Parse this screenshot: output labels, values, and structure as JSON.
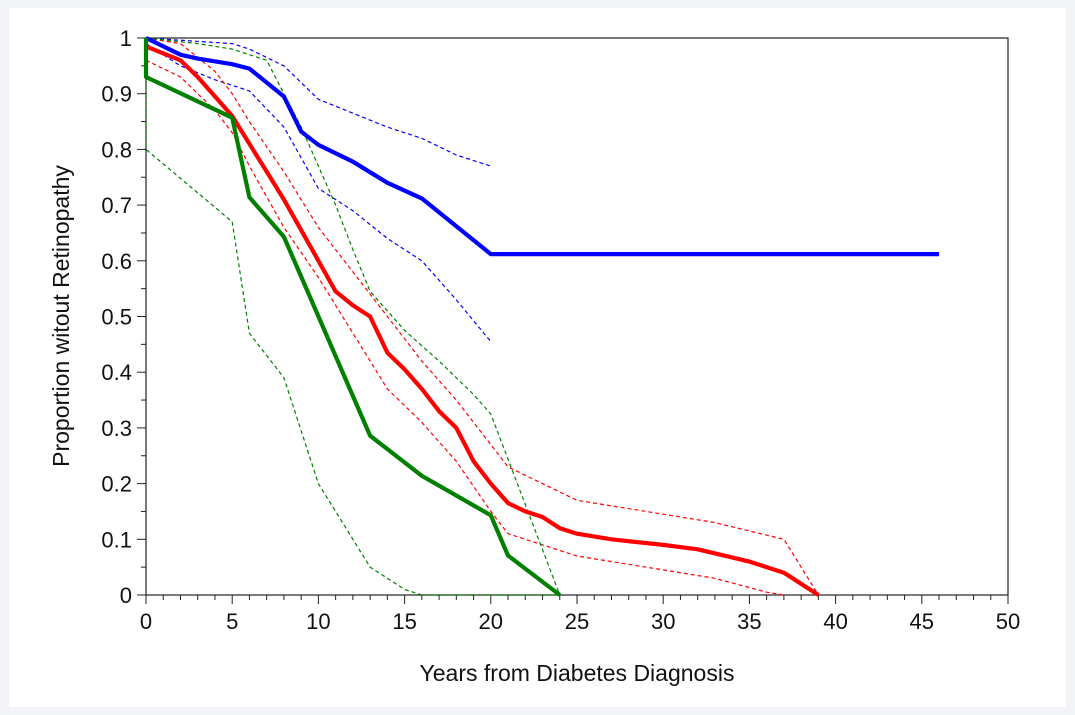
{
  "chart_data": {
    "type": "line",
    "title": "",
    "xlabel": "Years from Diabetes Diagnosis",
    "ylabel": "Proportion witout Retinopathy",
    "xlim": [
      0,
      50
    ],
    "ylim": [
      0,
      1
    ],
    "x_ticks": [
      "0",
      "5",
      "10",
      "15",
      "20",
      "25",
      "30",
      "35",
      "40",
      "45",
      "50"
    ],
    "y_ticks": [
      "0",
      "0.1",
      "0.2",
      "0.3",
      "0.4",
      "0.5",
      "0.6",
      "0.7",
      "0.8",
      "0.9",
      "1"
    ],
    "grid": false,
    "legend": "none",
    "series": [
      {
        "color": "#0000ff",
        "style": "solid",
        "x": [
          0,
          2,
          3,
          5,
          6,
          8,
          9,
          10,
          12,
          14,
          16,
          18,
          20,
          46
        ],
        "y": [
          1.0,
          0.97,
          0.963,
          0.953,
          0.945,
          0.895,
          0.832,
          0.808,
          0.778,
          0.74,
          0.712,
          0.662,
          0.612,
          0.612
        ]
      },
      {
        "color": "#0000ff",
        "style": "dashed",
        "x": [
          0,
          5,
          6,
          8,
          10,
          12,
          14,
          16,
          18,
          20
        ],
        "y": [
          1.0,
          0.99,
          0.98,
          0.95,
          0.89,
          0.865,
          0.84,
          0.82,
          0.79,
          0.77
        ]
      },
      {
        "color": "#0000ff",
        "style": "dashed",
        "x": [
          0,
          2,
          4,
          6,
          8,
          10,
          12,
          14,
          16,
          18,
          20
        ],
        "y": [
          0.99,
          0.95,
          0.925,
          0.905,
          0.84,
          0.73,
          0.69,
          0.64,
          0.6,
          0.53,
          0.455
        ]
      },
      {
        "color": "#ff0000",
        "style": "solid",
        "x": [
          0,
          2,
          3,
          4,
          5,
          6,
          7,
          8,
          9,
          10,
          11,
          12,
          13,
          14,
          15,
          16,
          17,
          18,
          19,
          20,
          21,
          22,
          23,
          24,
          25,
          27,
          30,
          32,
          35,
          37,
          39
        ],
        "y": [
          0.985,
          0.96,
          0.93,
          0.895,
          0.86,
          0.81,
          0.76,
          0.71,
          0.655,
          0.6,
          0.545,
          0.52,
          0.5,
          0.435,
          0.405,
          0.37,
          0.33,
          0.3,
          0.24,
          0.2,
          0.165,
          0.15,
          0.14,
          0.12,
          0.11,
          0.1,
          0.09,
          0.082,
          0.06,
          0.04,
          0.0
        ]
      },
      {
        "color": "#ff0000",
        "style": "dashed",
        "x": [
          0,
          2,
          4,
          5,
          6,
          8,
          10,
          12,
          14,
          16,
          18,
          20,
          21,
          25,
          30,
          33,
          37,
          39
        ],
        "y": [
          1.0,
          0.99,
          0.94,
          0.9,
          0.85,
          0.76,
          0.66,
          0.58,
          0.5,
          0.42,
          0.35,
          0.27,
          0.23,
          0.17,
          0.145,
          0.13,
          0.1,
          0.0
        ]
      },
      {
        "color": "#ff0000",
        "style": "dashed",
        "x": [
          0,
          2,
          4,
          5,
          6,
          8,
          10,
          12,
          14,
          16,
          18,
          20,
          21,
          25,
          30,
          33,
          36,
          37
        ],
        "y": [
          0.96,
          0.93,
          0.87,
          0.83,
          0.77,
          0.66,
          0.57,
          0.47,
          0.37,
          0.31,
          0.24,
          0.15,
          0.11,
          0.07,
          0.045,
          0.03,
          0.005,
          0.0
        ]
      },
      {
        "color": "#008000",
        "style": "solid",
        "x": [
          0,
          0,
          5,
          6,
          8,
          13,
          16,
          20,
          21,
          24
        ],
        "y": [
          1.0,
          0.93,
          0.857,
          0.714,
          0.643,
          0.286,
          0.214,
          0.143,
          0.071,
          0.0
        ]
      },
      {
        "color": "#008000",
        "style": "dashed",
        "x": [
          0,
          3,
          5,
          7,
          9,
          11,
          12,
          13,
          15,
          17,
          19,
          20,
          24
        ],
        "y": [
          1.0,
          0.99,
          0.98,
          0.96,
          0.84,
          0.7,
          0.62,
          0.545,
          0.475,
          0.42,
          0.36,
          0.325,
          0.0
        ]
      },
      {
        "color": "#008000",
        "style": "dashed",
        "x": [
          0,
          0,
          5,
          6,
          8,
          10,
          12,
          13,
          15,
          16,
          24
        ],
        "y": [
          1.0,
          0.8,
          0.67,
          0.47,
          0.39,
          0.2,
          0.1,
          0.05,
          0.01,
          0.0,
          0.0
        ]
      }
    ]
  }
}
